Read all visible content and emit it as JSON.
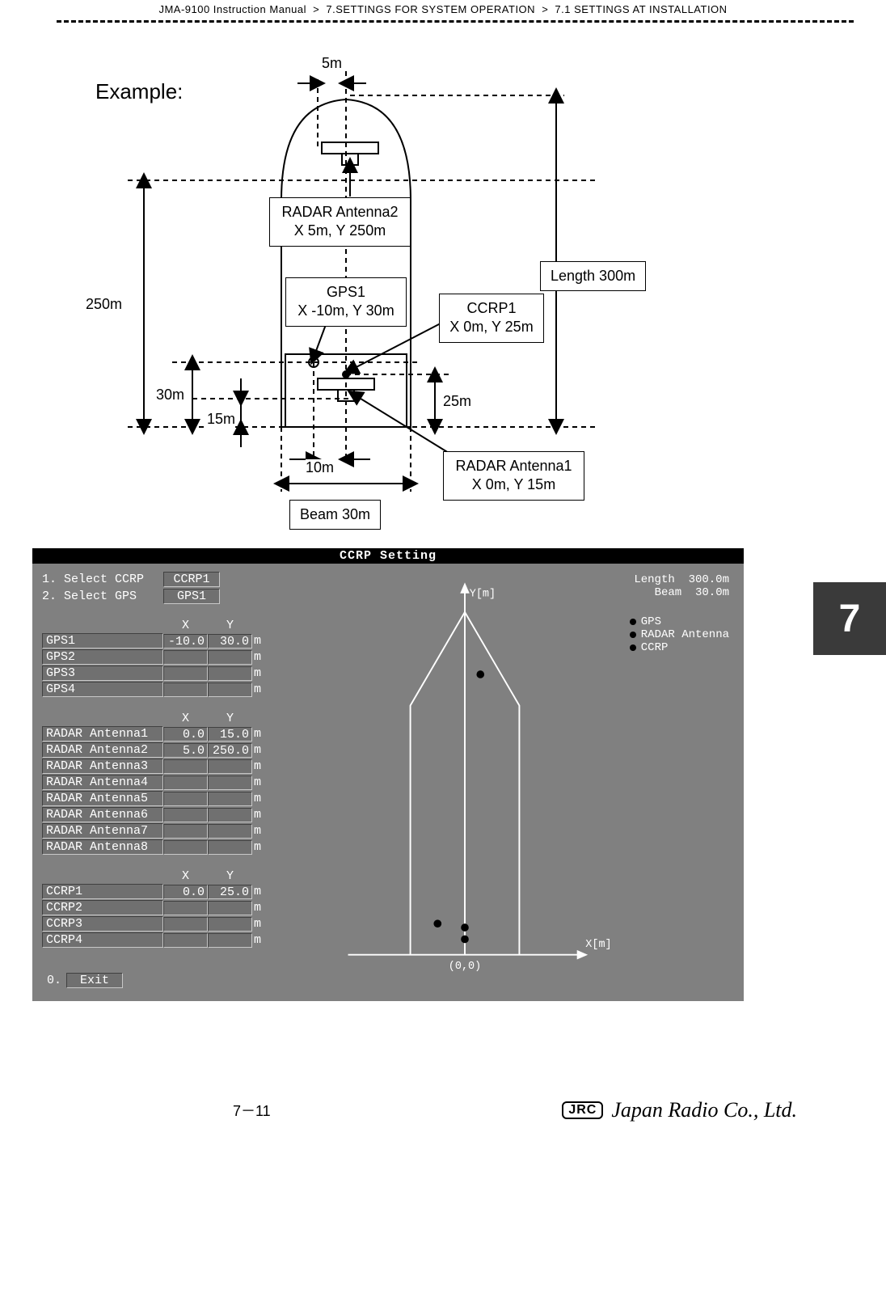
{
  "breadcrumb": {
    "a": "JMA-9100 Instruction Manual",
    "b": "7.SETTINGS FOR SYSTEM OPERATION",
    "c": "7.1  SETTINGS AT INSTALLATION",
    "sep": ">"
  },
  "side_tab": "7",
  "footer": {
    "page": "7－11",
    "badge": "JRC",
    "brand": "Japan Radio Co., Ltd."
  },
  "diagram": {
    "example": "Example:",
    "top5m": "5m",
    "length_box": "Length 300m",
    "radar2_box_l1": "RADAR Antenna2",
    "radar2_box_l2": "X 5m, Y 250m",
    "gps1_box_l1": "GPS1",
    "gps1_box_l2": "X -10m, Y 30m",
    "ccrp1_box_l1": "CCRP1",
    "ccrp1_box_l2": "X 0m, Y 25m",
    "radar1_box_l1": "RADAR Antenna1",
    "radar1_box_l2": "X 0m, Y 15m",
    "beam_box": "Beam 30m",
    "m250": "250m",
    "m30": "30m",
    "m15": "15m",
    "m25": "25m",
    "m10": "10m"
  },
  "ccrp": {
    "title": "CCRP Setting",
    "y_axis": "Y[m]",
    "x_axis": "X[m]",
    "origin": "(0,0)",
    "select_ccrp_lbl": "1. Select CCRP",
    "select_ccrp_val": "CCRP1",
    "select_gps_lbl": "2. Select GPS",
    "select_gps_val": "GPS1",
    "length_lbl": "Length",
    "length_val": "300.0m",
    "beam_lbl": "Beam",
    "beam_val": "30.0m",
    "legend_gps": "GPS",
    "legend_radar": "RADAR Antenna",
    "legend_ccrp": "CCRP",
    "x_hdr": "X",
    "y_hdr": "Y",
    "unit": "m",
    "gps_rows": [
      {
        "name": "GPS1",
        "x": "-10.0",
        "y": "30.0"
      },
      {
        "name": "GPS2",
        "x": "",
        "y": ""
      },
      {
        "name": "GPS3",
        "x": "",
        "y": ""
      },
      {
        "name": "GPS4",
        "x": "",
        "y": ""
      }
    ],
    "radar_rows": [
      {
        "name": "RADAR Antenna1",
        "x": "0.0",
        "y": "15.0"
      },
      {
        "name": "RADAR Antenna2",
        "x": "5.0",
        "y": "250.0"
      },
      {
        "name": "RADAR Antenna3",
        "x": "",
        "y": ""
      },
      {
        "name": "RADAR Antenna4",
        "x": "",
        "y": ""
      },
      {
        "name": "RADAR Antenna5",
        "x": "",
        "y": ""
      },
      {
        "name": "RADAR Antenna6",
        "x": "",
        "y": ""
      },
      {
        "name": "RADAR Antenna7",
        "x": "",
        "y": ""
      },
      {
        "name": "RADAR Antenna8",
        "x": "",
        "y": ""
      }
    ],
    "ccrp_rows": [
      {
        "name": "CCRP1",
        "x": "0.0",
        "y": "25.0"
      },
      {
        "name": "CCRP2",
        "x": "",
        "y": ""
      },
      {
        "name": "CCRP3",
        "x": "",
        "y": ""
      },
      {
        "name": "CCRP4",
        "x": "",
        "y": ""
      }
    ],
    "exit_num": "0.",
    "exit_lbl": "Exit"
  }
}
